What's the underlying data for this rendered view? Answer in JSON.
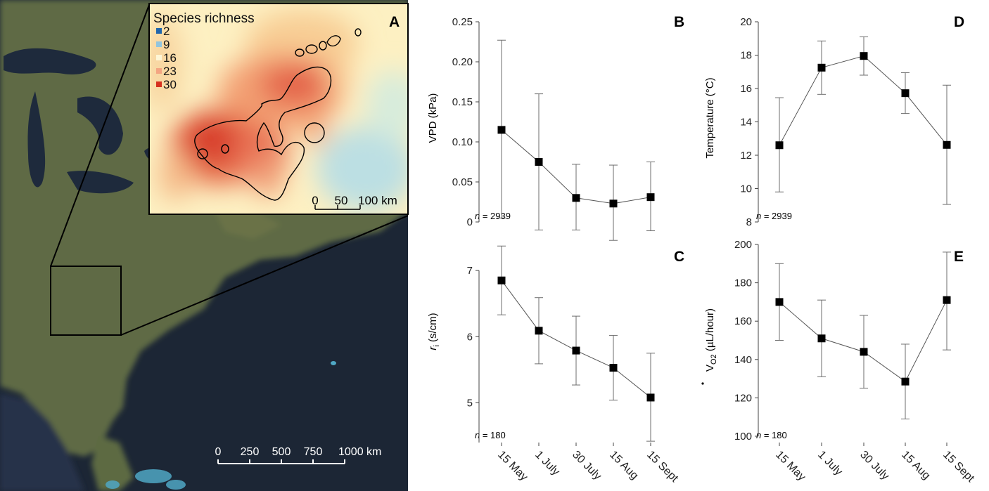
{
  "panel_a": {
    "label": "A",
    "legend_title": "Species richness",
    "legend": [
      {
        "label": "2",
        "color": "#2166ac"
      },
      {
        "label": "9",
        "color": "#92c5de"
      },
      {
        "label": "16",
        "color": "#fef6d6"
      },
      {
        "label": "23",
        "color": "#f4a582"
      },
      {
        "label": "30",
        "color": "#d6301f"
      }
    ],
    "inset_scale": [
      "0",
      "50",
      "100 km"
    ],
    "map_scale": [
      "0",
      "250",
      "500",
      "750",
      "1000 km"
    ]
  },
  "colors": {
    "water": "#1c2635",
    "land": "#5f6b45",
    "marker": "#000000",
    "errorbar": "#6d6d6d"
  },
  "chart_data": [
    {
      "type": "line",
      "panel": "B",
      "ylabel": "VPD (kPa)",
      "note_n": "n",
      "note_value": " = 2939",
      "categories": [
        "15 May",
        "1 July",
        "30 July",
        "15 Aug",
        "15 Sept"
      ],
      "ylim": [
        0,
        0.25
      ],
      "yticks": [
        0,
        0.05,
        0.1,
        0.15,
        0.2,
        0.25
      ],
      "yticklabels": [
        "0",
        "0.05",
        "0.10",
        "0.15",
        "0.20",
        "0.25"
      ],
      "values": [
        0.115,
        0.075,
        0.03,
        0.023,
        0.031
      ],
      "err_low": [
        0.005,
        -0.01,
        -0.01,
        -0.023,
        -0.011
      ],
      "err_high": [
        0.227,
        0.16,
        0.072,
        0.071,
        0.075
      ],
      "show_xticklabels": false
    },
    {
      "type": "line",
      "panel": "D",
      "ylabel": "Temperature (°C)",
      "note_n": "n",
      "note_value": " = 2939",
      "categories": [
        "15 May",
        "1 July",
        "30 July",
        "15 Aug",
        "15 Sept"
      ],
      "ylim": [
        8,
        20
      ],
      "yticks": [
        8,
        10,
        12,
        14,
        16,
        18,
        20
      ],
      "yticklabels": [
        "8",
        "10",
        "12",
        "14",
        "16",
        "18",
        "20"
      ],
      "values": [
        12.6,
        17.25,
        17.95,
        15.72,
        12.62
      ],
      "err_low": [
        9.8,
        15.65,
        16.8,
        14.5,
        9.05
      ],
      "err_high": [
        15.45,
        18.85,
        19.1,
        16.95,
        16.2
      ],
      "show_xticklabels": false
    },
    {
      "type": "line",
      "panel": "C",
      "ylabel_main": "r",
      "ylabel_sub": "i",
      "ylabel_rest": " (s/cm)",
      "note_n": "n",
      "note_value": " = 180",
      "categories": [
        "15 May",
        "1 July",
        "30 July",
        "15 Aug",
        "15 Sept"
      ],
      "ylim": [
        4.4,
        7.5
      ],
      "yticks": [
        5,
        6,
        7
      ],
      "yticklabels": [
        "5",
        "6",
        "7"
      ],
      "values": [
        6.85,
        6.09,
        5.79,
        5.53,
        5.08
      ],
      "err_low": [
        6.33,
        5.59,
        5.27,
        5.04,
        4.42
      ],
      "err_high": [
        7.37,
        6.59,
        6.31,
        6.02,
        5.75
      ],
      "show_xticklabels": true
    },
    {
      "type": "line",
      "panel": "E",
      "ylabel_pre": "V",
      "ylabel_sub": "O2",
      "ylabel_rest": " (µL/hour)",
      "note_n": "n",
      "note_value": " = 180",
      "categories": [
        "15 May",
        "1 July",
        "30 July",
        "15 Aug",
        "15 Sept"
      ],
      "ylim": [
        100,
        200
      ],
      "yticks": [
        100,
        120,
        140,
        160,
        180,
        200
      ],
      "yticklabels": [
        "100",
        "120",
        "140",
        "160",
        "180",
        "200"
      ],
      "values": [
        170,
        151,
        144,
        128.5,
        171
      ],
      "err_low": [
        150,
        131,
        125,
        109,
        145
      ],
      "err_high": [
        190,
        171,
        163,
        148,
        196
      ],
      "show_xticklabels": true
    }
  ]
}
